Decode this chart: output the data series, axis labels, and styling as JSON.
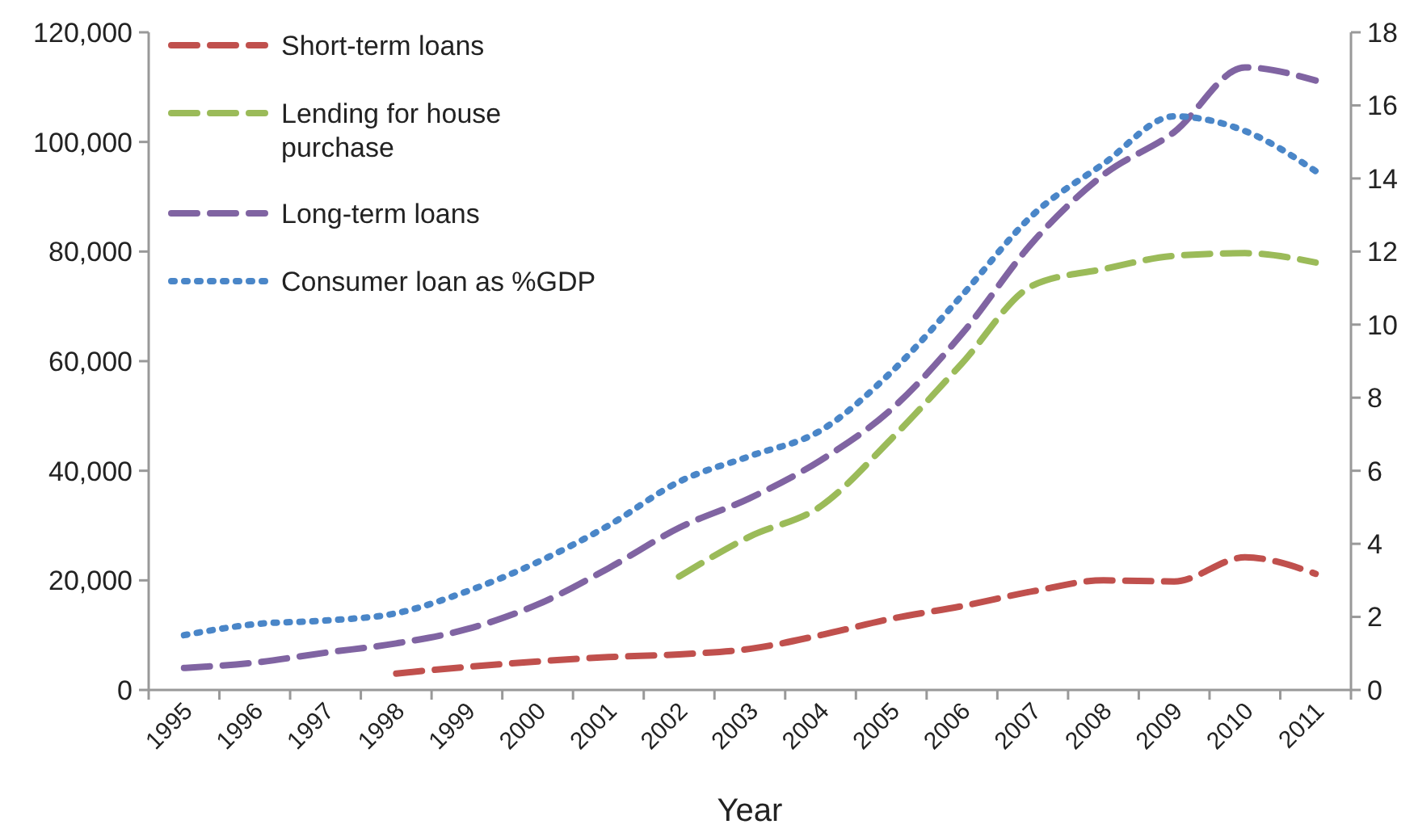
{
  "chart_data": {
    "type": "line",
    "xlabel": "Year",
    "categories": [
      "1995",
      "1996",
      "1997",
      "1998",
      "1999",
      "2000",
      "2001",
      "2002",
      "2003",
      "2004",
      "2005",
      "2006",
      "2007",
      "2008",
      "2009",
      "2010",
      "2011"
    ],
    "series": [
      {
        "name": "Short-term loans",
        "color": "#c0504d",
        "line_style": "dashed",
        "values": [
          null,
          null,
          null,
          3000,
          4200,
          5200,
          6000,
          6500,
          7500,
          10000,
          13000,
          15300,
          18000,
          20000,
          19800,
          24200,
          21200
        ]
      },
      {
        "name": "Lending for house purchase",
        "color": "#9bbb59",
        "line_style": "dashed",
        "values": [
          null,
          null,
          null,
          null,
          null,
          null,
          null,
          20700,
          28000,
          33500,
          45800,
          59600,
          73800,
          76800,
          79200,
          79700,
          78000
        ]
      },
      {
        "name": "Long-term loans",
        "color": "#8064a2",
        "line_style": "dashed",
        "values": [
          4000,
          5000,
          6800,
          8500,
          11100,
          15600,
          22200,
          29600,
          35000,
          41900,
          51200,
          65000,
          81700,
          94000,
          101800,
          113600,
          111200
        ]
      },
      {
        "name": "Consumer loan as %GDP",
        "color": "#4a86c8",
        "line_style": "dotted",
        "axis": "y2",
        "values": [
          1.5,
          1.8,
          1.9,
          2.1,
          2.7,
          3.5,
          4.5,
          5.7,
          6.4,
          7.1,
          8.7,
          10.8,
          13,
          14.4,
          15.7,
          15.3,
          14.2
        ]
      }
    ],
    "ylim": [
      0,
      120000
    ],
    "yticks": [
      0,
      {
        "value": 20000,
        "label": "20,000"
      },
      {
        "value": 40000,
        "label": "40,000"
      },
      {
        "value": 60000,
        "label": "60,000"
      },
      {
        "value": 80000,
        "label": "80,000"
      },
      {
        "value": 100000,
        "label": "100,000"
      },
      {
        "value": 120000,
        "label": "120,000"
      }
    ],
    "y2lim": [
      0,
      18
    ],
    "y2ticks": [
      0,
      2,
      4,
      6,
      8,
      10,
      12,
      14,
      16,
      18
    ],
    "grid": false,
    "legend": "top left",
    "marker": "none"
  }
}
